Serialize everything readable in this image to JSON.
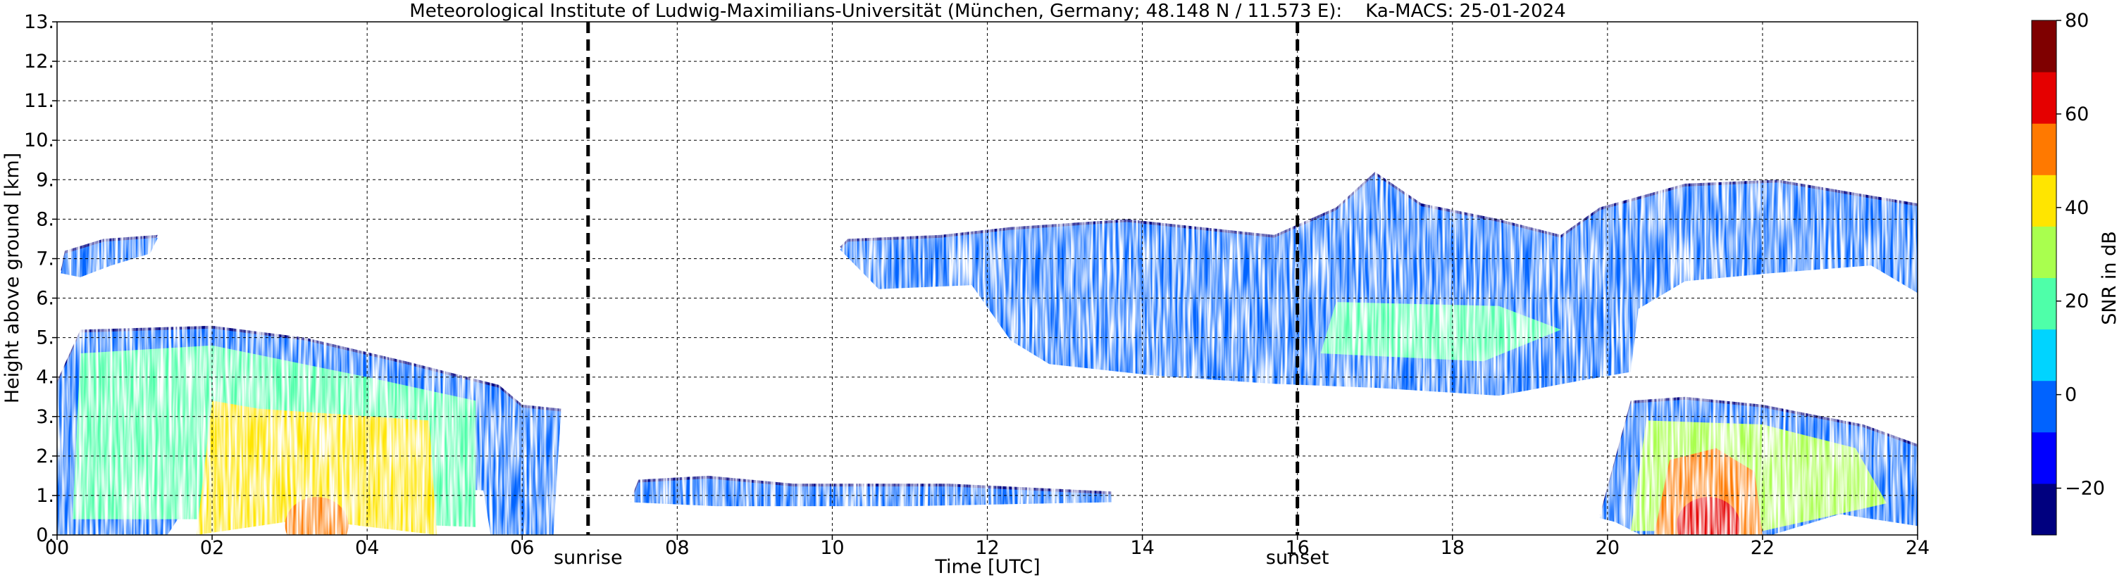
{
  "chart_data": {
    "type": "heatmap",
    "title": "Meteorological Institute of Ludwig-Maximilians-Universität (München, Germany; 48.148 N / 11.573 E):    Ka-MACS: 25-01-2024",
    "xlabel": "Time [UTC]",
    "ylabel": "Height above ground [km]",
    "xlim": [
      0,
      24
    ],
    "ylim": [
      0,
      13
    ],
    "x_ticks": [
      "00",
      "02",
      "04",
      "06",
      "08",
      "10",
      "12",
      "14",
      "16",
      "18",
      "20",
      "22",
      "24"
    ],
    "y_ticks": [
      "0.",
      "1.",
      "2.",
      "3.",
      "4.",
      "5.",
      "6.",
      "7.",
      "8.",
      "9.",
      "10.",
      "11.",
      "12.",
      "13."
    ],
    "grid": true,
    "markers": [
      {
        "time": 6.85,
        "label": "sunrise"
      },
      {
        "time": 16.0,
        "label": "sunset"
      }
    ],
    "colorbar": {
      "label": "SNR in dB",
      "min": -30,
      "max": 80,
      "ticks": [
        "80",
        "60",
        "40",
        "20",
        "0",
        "−20"
      ],
      "tick_values": [
        80,
        60,
        40,
        20,
        0,
        -20
      ],
      "colors": [
        "#00007f",
        "#0000ff",
        "#0063ff",
        "#00d4ff",
        "#4effa9",
        "#a9ff4e",
        "#ffe500",
        "#ff7900",
        "#e50000",
        "#7f0000"
      ]
    },
    "echo_regions": [
      {
        "name": "night-lower-cloud",
        "t0": 0.0,
        "t1": 6.5,
        "base_km": 0.0,
        "top_km": 5.2,
        "peak_snr_db": 50
      },
      {
        "name": "early-elevated-layer",
        "t0": 0.05,
        "t1": 1.3,
        "base_km": 6.6,
        "top_km": 7.6,
        "peak_snr_db": 0
      },
      {
        "name": "morning-low-streaks",
        "t0": 7.4,
        "t1": 13.6,
        "base_km": 0.8,
        "top_km": 1.5,
        "peak_snr_db": 0
      },
      {
        "name": "afternoon-mid-cloud",
        "t0": 10.1,
        "t1": 24.0,
        "base_km": 3.5,
        "top_km": 9.3,
        "peak_snr_db": 30
      },
      {
        "name": "evening-precipitation",
        "t0": 19.9,
        "t1": 24.0,
        "base_km": 0.0,
        "top_km": 3.5,
        "peak_snr_db": 60
      }
    ]
  }
}
